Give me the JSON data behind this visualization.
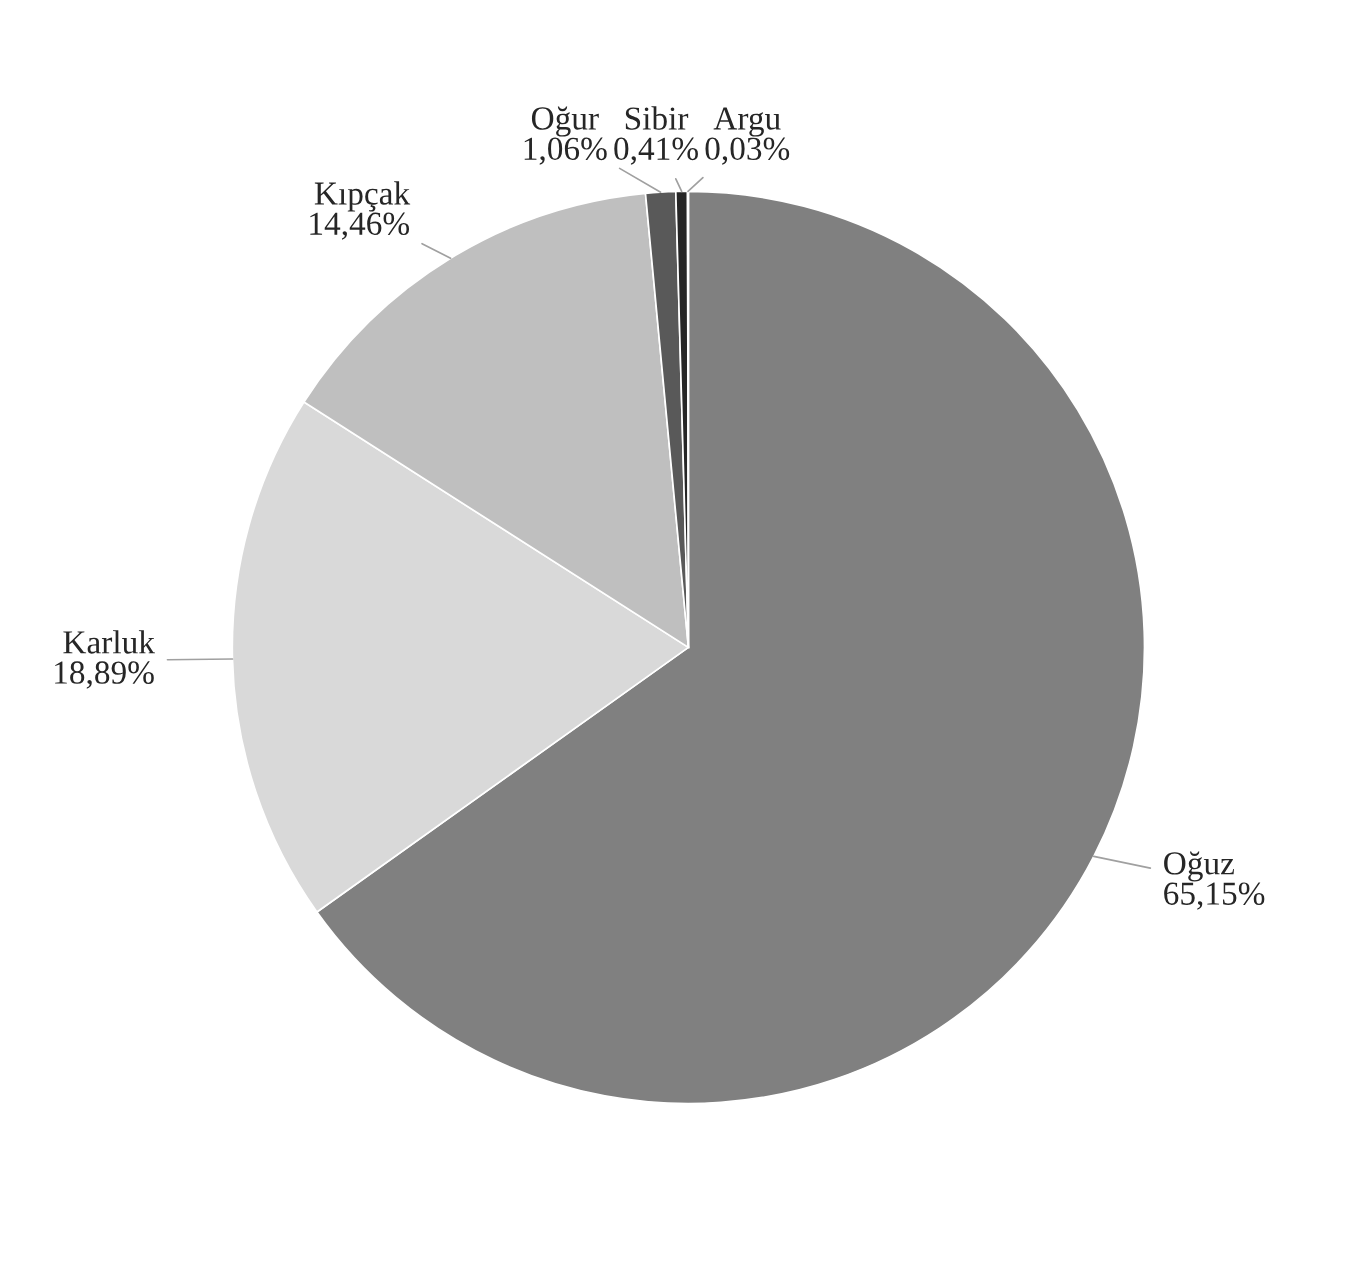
{
  "chart_data": {
    "type": "pie",
    "categories": [
      "Oğuz",
      "Karluk",
      "Kıpçak",
      "Oğur",
      "Sibir",
      "Argu"
    ],
    "values": [
      65.15,
      18.89,
      14.46,
      1.06,
      0.41,
      0.03
    ],
    "value_labels": [
      "65,15%",
      "18,89%",
      "14,46%",
      "1,06%",
      "0,41%",
      "0,03%"
    ],
    "colors": [
      "#808080",
      "#d9d9d9",
      "#bfbfbf",
      "#595959",
      "#262626",
      "#000000"
    ],
    "legend": false
  }
}
